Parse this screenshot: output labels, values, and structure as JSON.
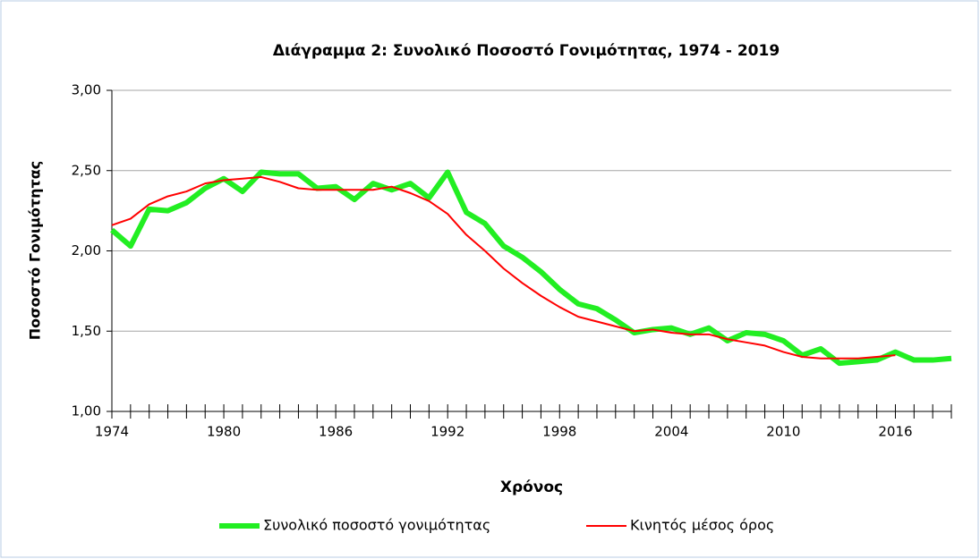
{
  "chart_data": {
    "type": "line",
    "title": "Διάγραμμα 2: Συνολικό  Ποσοστό Γονιμότητας,  1974 - 2019",
    "x_label": "Χρόνος",
    "y_label": "Ποσοστό Γονιμότητας",
    "x": [
      1974,
      1975,
      1976,
      1977,
      1978,
      1979,
      1980,
      1981,
      1982,
      1983,
      1984,
      1985,
      1986,
      1987,
      1988,
      1989,
      1990,
      1991,
      1992,
      1993,
      1994,
      1995,
      1996,
      1997,
      1998,
      1999,
      2000,
      2001,
      2002,
      2003,
      2004,
      2005,
      2006,
      2007,
      2008,
      2009,
      2010,
      2011,
      2012,
      2013,
      2014,
      2015,
      2016,
      2017,
      2018,
      2019
    ],
    "series": [
      {
        "name": "Συνολικό ποσοστό γονιμότητας",
        "color": "#22ee22",
        "width": 6,
        "values": [
          2.13,
          2.03,
          2.26,
          2.25,
          2.3,
          2.39,
          2.45,
          2.37,
          2.49,
          2.48,
          2.48,
          2.39,
          2.4,
          2.32,
          2.42,
          2.38,
          2.42,
          2.33,
          2.49,
          2.24,
          2.17,
          2.03,
          1.96,
          1.87,
          1.76,
          1.67,
          1.64,
          1.57,
          1.49,
          1.51,
          1.52,
          1.48,
          1.52,
          1.44,
          1.49,
          1.48,
          1.44,
          1.35,
          1.39,
          1.3,
          1.31,
          1.32,
          1.37,
          1.32,
          1.32,
          1.33
        ]
      },
      {
        "name": "Κινητός μέσος όρος",
        "color": "#ff0000",
        "width": 2,
        "values": [
          2.16,
          2.2,
          2.29,
          2.34,
          2.37,
          2.42,
          2.44,
          2.45,
          2.46,
          2.43,
          2.39,
          2.38,
          2.38,
          2.38,
          2.38,
          2.4,
          2.36,
          2.31,
          2.23,
          2.1,
          2.0,
          1.89,
          1.8,
          1.72,
          1.65,
          1.59,
          1.56,
          1.53,
          1.5,
          1.51,
          1.49,
          1.48,
          1.48,
          1.45,
          1.43,
          1.41,
          1.37,
          1.34,
          1.33,
          1.33,
          1.33,
          1.34,
          1.35,
          null,
          null,
          null
        ]
      }
    ],
    "xlim": [
      1974,
      2019
    ],
    "xticks": [
      1974,
      1980,
      1986,
      1992,
      1998,
      2004,
      2010,
      2016
    ],
    "ylim": [
      1,
      3
    ],
    "yticks": [
      {
        "value": 1,
        "label": "1,00"
      },
      {
        "value": 1.5,
        "label": "1,50"
      },
      {
        "value": 2,
        "label": "2,00"
      },
      {
        "value": 2.5,
        "label": "2,50"
      },
      {
        "value": 3,
        "label": "3,00"
      }
    ],
    "grid": true
  }
}
